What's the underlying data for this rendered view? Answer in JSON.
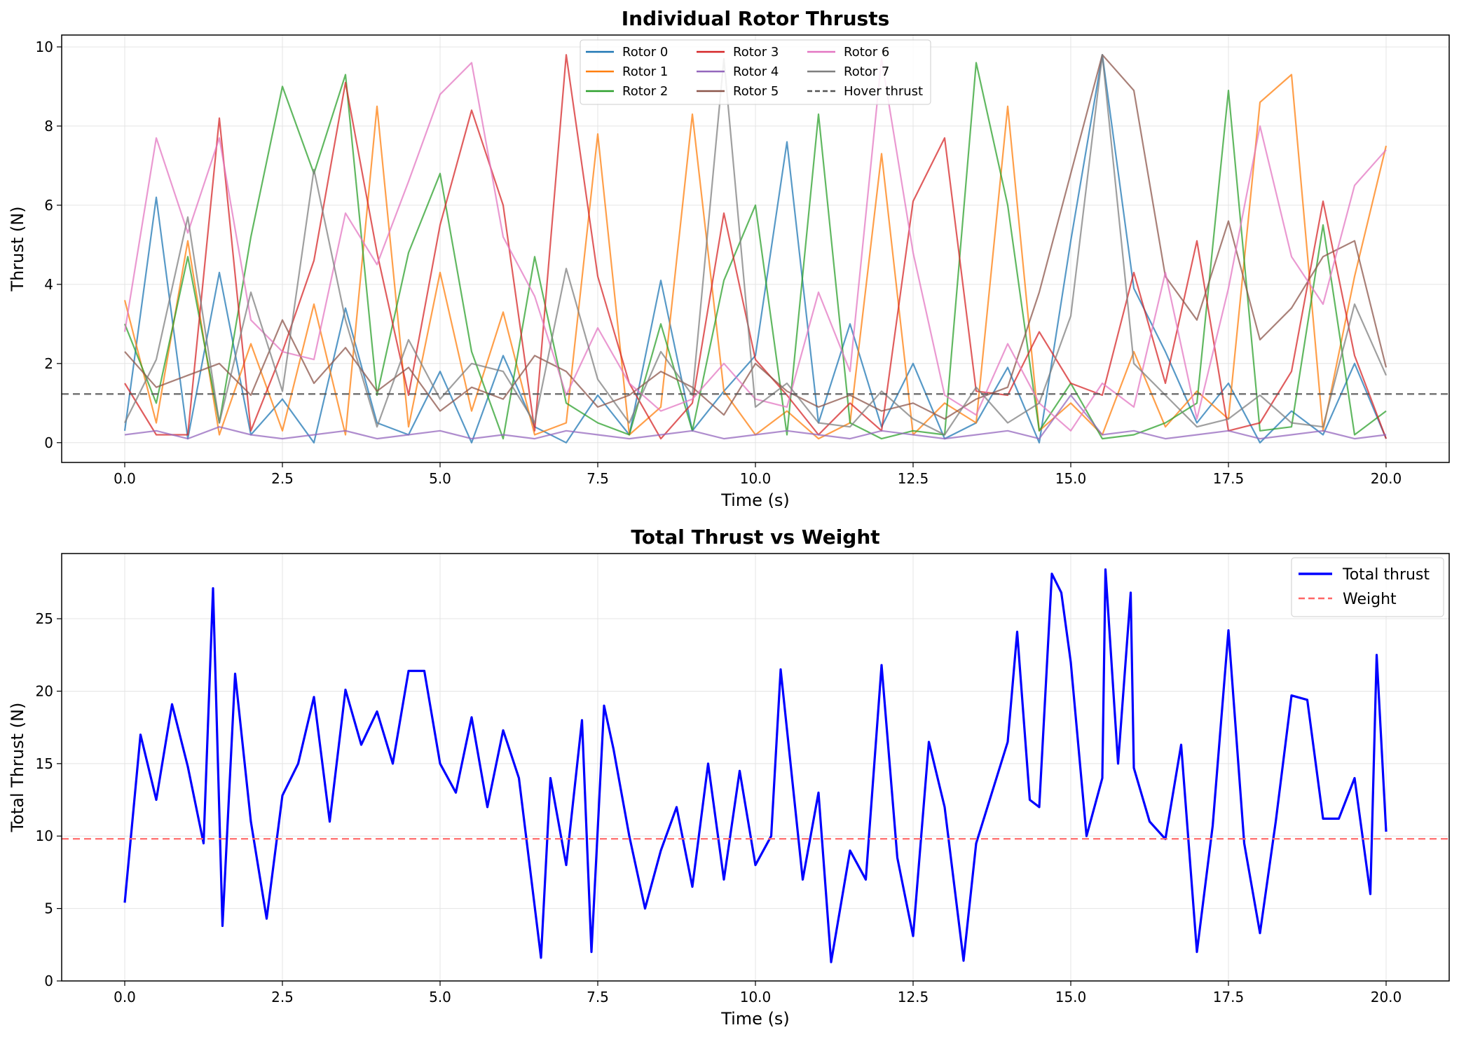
{
  "chart_data": [
    {
      "type": "line",
      "title": "Individual Rotor Thrusts",
      "xlabel": "Time (s)",
      "ylabel": "Thrust (N)",
      "xlim": [
        -1.0,
        21.0
      ],
      "ylim": [
        -0.5,
        10.3
      ],
      "xticks": [
        0.0,
        2.5,
        5.0,
        7.5,
        10.0,
        12.5,
        15.0,
        17.5,
        20.0
      ],
      "xtick_labels": [
        "0.0",
        "2.5",
        "5.0",
        "7.5",
        "10.0",
        "12.5",
        "15.0",
        "17.5",
        "20.0"
      ],
      "yticks": [
        0,
        2,
        4,
        6,
        8,
        10
      ],
      "ytick_labels": [
        "0",
        "2",
        "4",
        "6",
        "8",
        "10"
      ],
      "grid": true,
      "legend": {
        "placement": "upper center",
        "columns": 3
      },
      "x": [
        0.0,
        0.5,
        1.0,
        1.5,
        2.0,
        2.5,
        3.0,
        3.5,
        4.0,
        4.5,
        5.0,
        5.5,
        6.0,
        6.5,
        7.0,
        7.5,
        8.0,
        8.5,
        9.0,
        9.5,
        10.0,
        10.5,
        11.0,
        11.5,
        12.0,
        12.5,
        13.0,
        13.5,
        14.0,
        14.5,
        15.0,
        15.5,
        16.0,
        16.5,
        17.0,
        17.5,
        18.0,
        18.5,
        19.0,
        19.5,
        20.0
      ],
      "series": [
        {
          "name": "Rotor 0",
          "color": "#1f77b4",
          "values": [
            0.3,
            6.2,
            0.1,
            4.3,
            0.2,
            1.1,
            0.0,
            3.4,
            0.5,
            0.2,
            1.8,
            0.0,
            2.2,
            0.4,
            0.0,
            1.2,
            0.2,
            4.1,
            0.3,
            1.3,
            2.2,
            7.6,
            0.5,
            3.0,
            0.4,
            2.0,
            0.1,
            0.5,
            1.9,
            0.0,
            5.1,
            9.8,
            3.9,
            2.3,
            0.5,
            1.5,
            0.0,
            0.8,
            0.2,
            2.0,
            0.1
          ]
        },
        {
          "name": "Rotor 1",
          "color": "#ff7f0e",
          "values": [
            3.6,
            0.5,
            5.1,
            0.2,
            2.5,
            0.3,
            3.5,
            0.2,
            8.5,
            0.4,
            4.3,
            0.8,
            3.3,
            0.2,
            0.5,
            7.8,
            0.2,
            0.9,
            8.3,
            1.3,
            0.2,
            0.8,
            0.1,
            0.5,
            7.3,
            0.2,
            1.0,
            0.5,
            8.5,
            0.3,
            1.0,
            0.2,
            2.3,
            0.4,
            1.3,
            0.6,
            8.6,
            9.3,
            0.3,
            4.2,
            7.5
          ]
        },
        {
          "name": "Rotor 2",
          "color": "#2ca02c",
          "values": [
            3.0,
            1.0,
            4.7,
            0.5,
            5.2,
            9.0,
            6.8,
            9.3,
            1.2,
            4.8,
            6.8,
            2.3,
            0.1,
            4.7,
            1.0,
            0.5,
            0.2,
            3.0,
            0.3,
            4.1,
            6.0,
            0.2,
            8.3,
            0.5,
            0.1,
            0.3,
            0.2,
            9.6,
            6.0,
            0.3,
            1.5,
            0.1,
            0.2,
            0.5,
            1.0,
            8.9,
            0.3,
            0.4,
            5.5,
            0.2,
            0.8
          ]
        },
        {
          "name": "Rotor 3",
          "color": "#d62728",
          "values": [
            1.5,
            0.2,
            0.2,
            8.2,
            0.3,
            2.3,
            4.6,
            9.1,
            4.8,
            1.2,
            5.5,
            8.4,
            6.0,
            0.3,
            9.8,
            4.2,
            1.5,
            0.1,
            1.0,
            5.8,
            2.1,
            1.2,
            0.2,
            1.0,
            0.3,
            6.1,
            7.7,
            1.3,
            1.2,
            2.8,
            1.5,
            1.2,
            4.3,
            1.5,
            5.1,
            0.3,
            0.5,
            1.8,
            6.1,
            2.2,
            0.1
          ]
        },
        {
          "name": "Rotor 4",
          "color": "#9467bd",
          "values": [
            0.2,
            0.3,
            0.1,
            0.4,
            0.2,
            0.1,
            0.2,
            0.3,
            0.1,
            0.2,
            0.3,
            0.1,
            0.2,
            0.1,
            0.3,
            0.2,
            0.1,
            0.2,
            0.3,
            0.1,
            0.2,
            0.3,
            0.2,
            0.1,
            0.3,
            0.2,
            0.1,
            0.2,
            0.3,
            0.1,
            1.2,
            0.2,
            0.3,
            0.1,
            0.2,
            0.3,
            0.1,
            0.2,
            0.3,
            0.1,
            0.2
          ]
        },
        {
          "name": "Rotor 5",
          "color": "#8c564b",
          "values": [
            2.3,
            1.4,
            1.7,
            2.0,
            1.2,
            3.1,
            1.5,
            2.4,
            1.3,
            1.9,
            0.8,
            1.4,
            1.1,
            2.2,
            1.8,
            0.9,
            1.2,
            1.8,
            1.4,
            0.7,
            2.0,
            1.3,
            0.9,
            1.2,
            0.8,
            1.0,
            0.6,
            1.1,
            1.4,
            3.8,
            6.8,
            9.8,
            8.9,
            4.2,
            3.1,
            5.6,
            2.6,
            3.4,
            4.7,
            5.1,
            1.9
          ]
        },
        {
          "name": "Rotor 6",
          "color": "#e377c2",
          "values": [
            2.8,
            7.7,
            5.3,
            7.7,
            3.1,
            2.3,
            2.1,
            5.8,
            4.5,
            6.6,
            8.8,
            9.6,
            5.2,
            3.7,
            1.2,
            2.9,
            1.5,
            0.8,
            1.1,
            2.0,
            1.1,
            0.9,
            3.8,
            1.8,
            9.7,
            4.8,
            1.2,
            0.7,
            2.5,
            1.0,
            0.3,
            1.5,
            0.9,
            4.3,
            0.6,
            3.9,
            8.0,
            4.7,
            3.5,
            6.5,
            7.4
          ]
        },
        {
          "name": "Rotor 7",
          "color": "#7f7f7f",
          "values": [
            0.5,
            2.1,
            5.7,
            0.5,
            3.8,
            1.3,
            6.9,
            3.1,
            0.4,
            2.6,
            1.1,
            2.0,
            1.8,
            0.5,
            4.4,
            1.6,
            0.5,
            2.3,
            1.2,
            9.7,
            0.9,
            1.5,
            0.5,
            0.4,
            1.3,
            0.6,
            0.2,
            1.4,
            0.5,
            1.0,
            3.2,
            9.8,
            2.0,
            1.2,
            0.4,
            0.6,
            1.2,
            0.5,
            0.4,
            3.5,
            1.7
          ]
        },
        {
          "name": "Hover thrust",
          "color": "#555555",
          "dashed": true,
          "constant": 1.23
        }
      ]
    },
    {
      "type": "line",
      "title": "Total Thrust vs Weight",
      "xlabel": "Time (s)",
      "ylabel": "Total Thrust (N)",
      "xlim": [
        -1.0,
        21.0
      ],
      "ylim": [
        0,
        29.5
      ],
      "xticks": [
        0.0,
        2.5,
        5.0,
        7.5,
        10.0,
        12.5,
        15.0,
        17.5,
        20.0
      ],
      "xtick_labels": [
        "0.0",
        "2.5",
        "5.0",
        "7.5",
        "10.0",
        "12.5",
        "15.0",
        "17.5",
        "20.0"
      ],
      "yticks": [
        0,
        5,
        10,
        15,
        20,
        25
      ],
      "ytick_labels": [
        "0",
        "5",
        "10",
        "15",
        "20",
        "25"
      ],
      "grid": true,
      "legend": {
        "placement": "top-right"
      },
      "x": [
        0.0,
        0.25,
        0.5,
        0.75,
        1.0,
        1.25,
        1.4,
        1.55,
        1.75,
        2.0,
        2.25,
        2.5,
        2.75,
        3.0,
        3.25,
        3.5,
        3.75,
        4.0,
        4.25,
        4.5,
        4.75,
        5.0,
        5.25,
        5.5,
        5.75,
        6.0,
        6.25,
        6.6,
        6.75,
        7.0,
        7.25,
        7.4,
        7.6,
        7.75,
        8.0,
        8.25,
        8.5,
        8.75,
        9.0,
        9.25,
        9.5,
        9.75,
        10.0,
        10.25,
        10.4,
        10.75,
        11.0,
        11.2,
        11.5,
        11.75,
        12.0,
        12.25,
        12.5,
        12.75,
        13.0,
        13.3,
        13.5,
        13.75,
        14.0,
        14.15,
        14.35,
        14.5,
        14.7,
        14.85,
        15.0,
        15.25,
        15.5,
        15.55,
        15.75,
        15.95,
        16.0,
        16.25,
        16.5,
        16.75,
        17.0,
        17.25,
        17.5,
        17.75,
        18.0,
        18.25,
        18.5,
        18.75,
        19.0,
        19.25,
        19.5,
        19.75,
        19.85,
        20.0
      ],
      "series": [
        {
          "name": "Total thrust",
          "color": "#0000ff",
          "values": [
            5.4,
            17.0,
            12.5,
            19.1,
            14.8,
            9.5,
            27.1,
            3.8,
            21.2,
            11.0,
            4.3,
            12.8,
            15.0,
            19.6,
            11.0,
            20.1,
            16.3,
            18.6,
            15.0,
            21.4,
            21.4,
            15.0,
            13.0,
            18.2,
            12.0,
            17.3,
            14.0,
            1.6,
            14.0,
            8.0,
            18.0,
            2.0,
            19.0,
            16.0,
            10.0,
            5.0,
            9.0,
            12.0,
            6.5,
            15.0,
            7.0,
            14.5,
            8.0,
            10.0,
            21.5,
            7.0,
            13.0,
            1.3,
            9.0,
            7.0,
            21.8,
            8.5,
            3.1,
            16.5,
            12.0,
            1.4,
            9.5,
            13.0,
            16.5,
            24.1,
            12.5,
            12.0,
            28.1,
            26.8,
            22.0,
            10.0,
            14.0,
            28.4,
            15.0,
            26.8,
            14.7,
            11.0,
            9.8,
            16.3,
            2.0,
            10.7,
            24.2,
            9.5,
            3.3,
            11.0,
            19.7,
            19.4,
            11.2,
            11.2,
            14.0,
            6.0,
            22.5,
            10.3
          ]
        },
        {
          "name": "Weight",
          "color": "#ff6666",
          "dashed": true,
          "constant": 9.81
        }
      ]
    }
  ]
}
